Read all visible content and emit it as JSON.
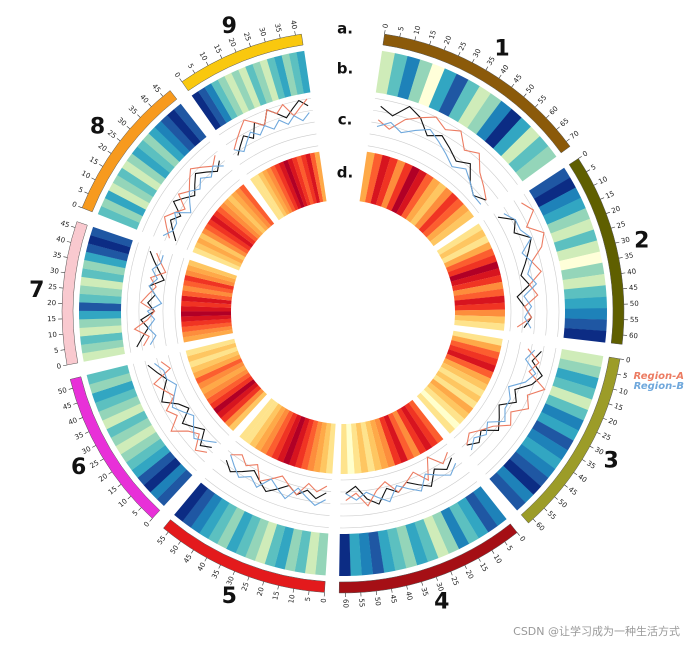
{
  "chart_data": {
    "type": "circos",
    "track_labels": [
      "a.",
      "b.",
      "c.",
      "d."
    ],
    "watermark": "CSDN @让学习成为一种生活方式",
    "chromosomes": [
      {
        "name": "1",
        "color": "#8b5a0a",
        "xlim": [
          0,
          72
        ],
        "xticks": [
          0,
          5,
          10,
          15,
          20,
          25,
          30,
          35,
          40,
          45,
          50,
          55,
          60,
          65,
          70
        ],
        "heat_b": [
          3,
          5,
          7,
          4,
          2,
          6,
          8,
          5,
          3,
          4,
          7,
          9,
          6,
          3,
          5,
          4
        ],
        "heat_d": [
          4,
          6,
          8,
          7,
          5,
          7,
          9,
          8,
          6,
          4,
          3,
          5,
          7,
          6,
          4,
          3
        ]
      },
      {
        "name": "2",
        "color": "#5f5f00",
        "xlim": [
          0,
          63
        ],
        "xticks": [
          0,
          5,
          10,
          15,
          20,
          25,
          30,
          35,
          40,
          45,
          50,
          55,
          60
        ],
        "heat_b": [
          8,
          9,
          7,
          6,
          4,
          3,
          5,
          3,
          2,
          4,
          3,
          5,
          6,
          7,
          8,
          9
        ],
        "heat_d": [
          2,
          3,
          2,
          4,
          6,
          7,
          9,
          8,
          7,
          5,
          6,
          8,
          7,
          5,
          3,
          2
        ]
      },
      {
        "name": "3",
        "color": "#9c9c28",
        "xlim": [
          0,
          62
        ],
        "xticks": [
          0,
          5,
          10,
          15,
          20,
          25,
          30,
          35,
          40,
          45,
          50,
          55,
          60
        ],
        "heat_b": [
          3,
          4,
          6,
          5,
          3,
          5,
          7,
          6,
          8,
          7,
          6,
          7,
          8,
          9,
          7,
          8
        ],
        "heat_d": [
          2,
          4,
          6,
          7,
          8,
          6,
          4,
          3,
          2,
          3,
          2,
          4,
          3,
          2,
          1,
          2
        ]
      },
      {
        "name": "4",
        "color": "#a50f15",
        "xlim": [
          0,
          62
        ],
        "xticks": [
          0,
          5,
          10,
          15,
          20,
          25,
          30,
          35,
          40,
          45,
          50,
          55,
          60
        ],
        "heat_b": [
          7,
          8,
          6,
          5,
          7,
          4,
          3,
          5,
          6,
          4,
          5,
          6,
          8,
          7,
          6,
          9
        ],
        "heat_d": [
          6,
          7,
          8,
          7,
          5,
          6,
          8,
          7,
          5,
          4,
          3,
          2,
          3,
          2,
          1,
          2
        ]
      },
      {
        "name": "5",
        "color": "#e31a1c",
        "xlim": [
          0,
          57
        ],
        "xticks": [
          0,
          5,
          10,
          15,
          20,
          25,
          30,
          35,
          40,
          45,
          50,
          55
        ],
        "heat_b": [
          4,
          3,
          5,
          4,
          6,
          5,
          3,
          4,
          5,
          6,
          4,
          5,
          6,
          7,
          8,
          9
        ],
        "heat_d": [
          2,
          3,
          4,
          5,
          6,
          7,
          8,
          9,
          8,
          7,
          6,
          5,
          4,
          3,
          2,
          2
        ]
      },
      {
        "name": "6",
        "color": "#e830d8",
        "xlim": [
          0,
          53
        ],
        "xticks": [
          0,
          5,
          10,
          15,
          20,
          25,
          30,
          35,
          40,
          45,
          50
        ],
        "heat_b": [
          8,
          7,
          9,
          8,
          6,
          5,
          4,
          3,
          4,
          5,
          3,
          4,
          5,
          6,
          4,
          5
        ],
        "heat_d": [
          3,
          5,
          7,
          8,
          9,
          7,
          6,
          5,
          4,
          5,
          6,
          4,
          3,
          2,
          3,
          2
        ]
      },
      {
        "name": "7",
        "color": "#f9c9cf",
        "xlim": [
          0,
          47
        ],
        "xticks": [
          0,
          5,
          10,
          15,
          20,
          25,
          30,
          35,
          40,
          45
        ],
        "heat_b": [
          3,
          4,
          5,
          3,
          4,
          6,
          8,
          5,
          4,
          3,
          5,
          4,
          6,
          8,
          9,
          8
        ],
        "heat_d": [
          4,
          5,
          6,
          7,
          8,
          9,
          8,
          7,
          8,
          6,
          5,
          6,
          7,
          5,
          4,
          3
        ]
      },
      {
        "name": "8",
        "color": "#f79a1e",
        "xlim": [
          0,
          48
        ],
        "xticks": [
          0,
          5,
          10,
          15,
          20,
          25,
          30,
          35,
          40,
          45
        ],
        "heat_b": [
          5,
          4,
          6,
          3,
          4,
          5,
          3,
          4,
          6,
          5,
          4,
          6,
          7,
          8,
          9,
          8
        ],
        "heat_d": [
          2,
          3,
          4,
          3,
          5,
          6,
          7,
          8,
          7,
          6,
          5,
          4,
          3,
          4,
          5,
          6
        ]
      },
      {
        "name": "9",
        "color": "#f9c80e",
        "xlim": [
          0,
          42
        ],
        "xticks": [
          0,
          5,
          10,
          15,
          20,
          25,
          30,
          35,
          40
        ],
        "heat_b": [
          9,
          8,
          7,
          5,
          4,
          3,
          4,
          3,
          5,
          4,
          3,
          5,
          6,
          4,
          5,
          6
        ],
        "heat_d": [
          2,
          2,
          3,
          4,
          5,
          6,
          7,
          8,
          9,
          8,
          7,
          6,
          7,
          8,
          6,
          4
        ]
      }
    ],
    "series": [
      {
        "color": "#111111",
        "values": [
          [
            7,
            6,
            8,
            7,
            5,
            6,
            5,
            4,
            5,
            3,
            2,
            3
          ],
          [
            3,
            5,
            4,
            6,
            5,
            4,
            3,
            4,
            2,
            3,
            4,
            3
          ],
          [
            6,
            5,
            7,
            6,
            4,
            5,
            3,
            4,
            5,
            3,
            4,
            3
          ],
          [
            3,
            4,
            3,
            5,
            4,
            3,
            4,
            3,
            5,
            4,
            2,
            3
          ],
          [
            3,
            4,
            3,
            4,
            3,
            4,
            5,
            4,
            3,
            4,
            5,
            4
          ],
          [
            4,
            5,
            3,
            4,
            5,
            3,
            4,
            6,
            5,
            4,
            5,
            6
          ],
          [
            7,
            6,
            5,
            6,
            4,
            5,
            4,
            5,
            3,
            4,
            5,
            6
          ],
          [
            3,
            4,
            5,
            4,
            6,
            5,
            4,
            5,
            6,
            5,
            4,
            5
          ],
          [
            4,
            5,
            6,
            5,
            7,
            6,
            8,
            7,
            6,
            7,
            8,
            7
          ]
        ]
      },
      {
        "name": "Region-A",
        "color": "#ec7c62",
        "values": [
          [
            5,
            4,
            6,
            7,
            8,
            7,
            8,
            6,
            7,
            5,
            4,
            3
          ],
          [
            7,
            8,
            6,
            8,
            7,
            5,
            6,
            4,
            5,
            3,
            4,
            2
          ],
          [
            4,
            6,
            5,
            8,
            6,
            7,
            5,
            6,
            4,
            3,
            2,
            3
          ],
          [
            2,
            3,
            1,
            4,
            2,
            3,
            4,
            2,
            3,
            5,
            3,
            4
          ],
          [
            2,
            3,
            2,
            4,
            3,
            2,
            3,
            4,
            2,
            3,
            2,
            3
          ],
          [
            5,
            6,
            4,
            5,
            7,
            5,
            6,
            4,
            5,
            6,
            3,
            4
          ],
          [
            6,
            5,
            7,
            5,
            4,
            6,
            5,
            4,
            5,
            3,
            4,
            5
          ],
          [
            4,
            5,
            6,
            5,
            4,
            6,
            5,
            6,
            7,
            6,
            5,
            6
          ],
          [
            5,
            6,
            7,
            8,
            7,
            6,
            8,
            7,
            8,
            6,
            7,
            8
          ]
        ]
      },
      {
        "name": "Region-B",
        "color": "#6fa8dc",
        "values": [
          [
            4,
            5,
            4,
            5,
            6,
            5,
            4,
            3,
            4,
            3,
            2,
            2
          ],
          [
            4,
            5,
            5,
            6,
            4,
            5,
            4,
            5,
            3,
            4,
            3,
            4
          ],
          [
            5,
            4,
            6,
            5,
            3,
            4,
            4,
            5,
            3,
            4,
            3,
            4
          ],
          [
            4,
            5,
            4,
            3,
            5,
            4,
            3,
            5,
            4,
            3,
            4,
            3
          ],
          [
            4,
            5,
            4,
            3,
            5,
            4,
            3,
            5,
            4,
            5,
            4,
            3
          ],
          [
            3,
            4,
            5,
            4,
            3,
            4,
            5,
            4,
            3,
            4,
            4,
            5
          ],
          [
            5,
            4,
            5,
            4,
            5,
            3,
            4,
            5,
            4,
            5,
            4,
            4
          ],
          [
            5,
            4,
            4,
            5,
            3,
            4,
            5,
            4,
            5,
            4,
            5,
            4
          ],
          [
            5,
            4,
            5,
            6,
            5,
            6,
            5,
            6,
            5,
            6,
            5,
            6
          ]
        ]
      }
    ]
  }
}
